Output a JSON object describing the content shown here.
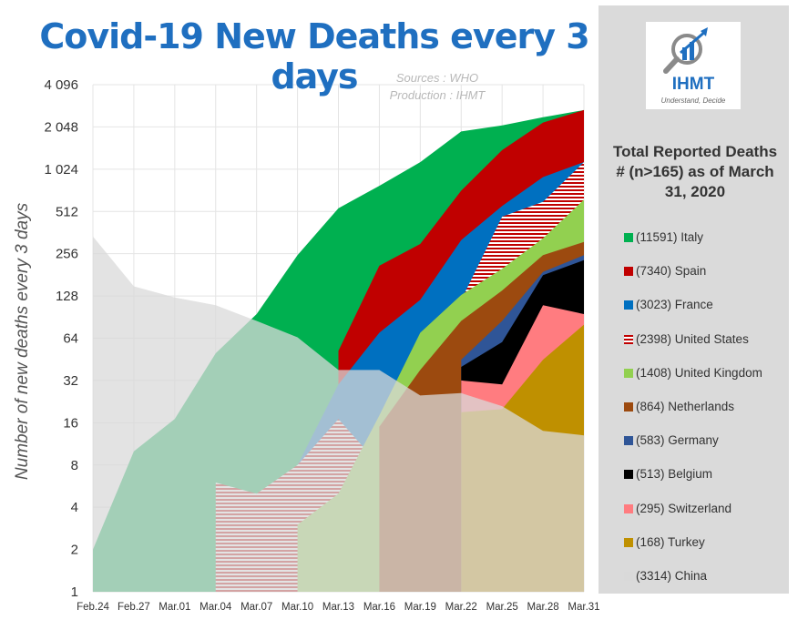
{
  "title": "Covid-19 New Deaths every 3 days",
  "sources": "Sources : WHO",
  "production": "Production : IHMT",
  "logo": {
    "name": "IHMT",
    "tagline": "Understand, Decide"
  },
  "legend_title": "Total Reported Deaths # (n>165) as of March 31, 2020",
  "legend": [
    {
      "label": "(11591) Italy",
      "color": "#00b050"
    },
    {
      "label": "(7340) Spain",
      "color": "#c00000"
    },
    {
      "label": "(3023) France",
      "color": "#0070c0"
    },
    {
      "label": "(2398) United States",
      "color": "#c00000",
      "hatch": true
    },
    {
      "label": "(1408) United Kingdom",
      "color": "#92d050"
    },
    {
      "label": "(864) Netherlands",
      "color": "#9c4a0f"
    },
    {
      "label": "(583) Germany",
      "color": "#2f5597"
    },
    {
      "label": "(513) Belgium",
      "color": "#000000"
    },
    {
      "label": "(295) Switzerland",
      "color": "#ff7c80"
    },
    {
      "label": "(168) Turkey",
      "color": "#bf9000"
    },
    {
      "label": "(3314) China",
      "color": "#d9d9d9"
    }
  ],
  "chart_data": {
    "type": "area",
    "ylabel": "Number of new deaths every 3 days",
    "y_scale": "log2",
    "ylim": [
      1,
      4096
    ],
    "yticks": [
      "1",
      "2",
      "4",
      "8",
      "16",
      "32",
      "64",
      "128",
      "256",
      "512",
      "1 024",
      "2 048",
      "4 096"
    ],
    "x": [
      "Feb.24",
      "Feb.27",
      "Mar.01",
      "Mar.04",
      "Mar.07",
      "Mar.10",
      "Mar.13",
      "Mar.16",
      "Mar.19",
      "Mar.22",
      "Mar.25",
      "Mar.28",
      "Mar.31"
    ],
    "series": [
      {
        "name": "Italy",
        "color": "#00b050",
        "values": [
          2,
          10,
          17,
          50,
          95,
          250,
          540,
          780,
          1150,
          1900,
          2100,
          2400,
          2700
        ]
      },
      {
        "name": "Spain",
        "color": "#c00000",
        "values": [
          null,
          null,
          null,
          null,
          null,
          null,
          52,
          210,
          300,
          720,
          1400,
          2200,
          2700
        ]
      },
      {
        "name": "France",
        "color": "#0070c0",
        "values": [
          null,
          null,
          null,
          null,
          null,
          8,
          30,
          70,
          120,
          320,
          560,
          900,
          1150
        ]
      },
      {
        "name": "United States",
        "color": "#c00000",
        "hatch": true,
        "values": [
          null,
          null,
          null,
          6,
          5,
          8,
          17,
          8,
          22,
          120,
          470,
          600,
          1150
        ]
      },
      {
        "name": "United Kingdom",
        "color": "#92d050",
        "values": [
          null,
          null,
          null,
          null,
          null,
          3,
          5,
          18,
          70,
          130,
          200,
          330,
          620
        ]
      },
      {
        "name": "Netherlands",
        "color": "#9c4a0f",
        "values": [
          null,
          null,
          null,
          null,
          null,
          null,
          null,
          15,
          38,
          85,
          140,
          250,
          310
        ]
      },
      {
        "name": "Germany",
        "color": "#2f5597",
        "values": [
          null,
          null,
          null,
          null,
          null,
          null,
          null,
          null,
          null,
          45,
          85,
          190,
          250
        ]
      },
      {
        "name": "Belgium",
        "color": "#000000",
        "values": [
          null,
          null,
          null,
          null,
          null,
          null,
          null,
          null,
          null,
          40,
          60,
          180,
          230
        ]
      },
      {
        "name": "Switzerland",
        "color": "#ff7c80",
        "values": [
          null,
          null,
          null,
          null,
          null,
          null,
          null,
          null,
          null,
          32,
          30,
          110,
          95
        ]
      },
      {
        "name": "Turkey",
        "color": "#bf9000",
        "values": [
          null,
          null,
          null,
          null,
          null,
          null,
          null,
          null,
          null,
          19,
          20,
          45,
          80
        ]
      },
      {
        "name": "China",
        "color": "#d9d9d9",
        "values": [
          340,
          150,
          125,
          110,
          85,
          65,
          38,
          38,
          25,
          26,
          21,
          14,
          13
        ]
      }
    ],
    "grid": true,
    "legend_position": "right"
  }
}
